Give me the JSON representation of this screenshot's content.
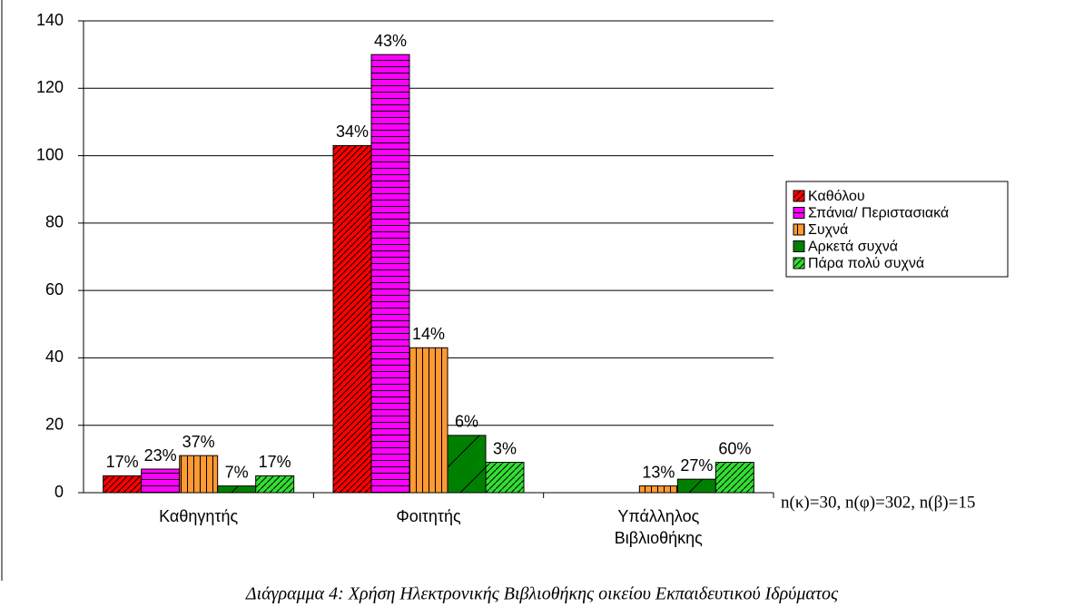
{
  "chart_data": {
    "type": "bar",
    "categories": [
      "Καθηγητής",
      "Φοιτητής",
      "Υπάλληλος Βιβλιοθήκης"
    ],
    "series": [
      {
        "name": "Καθόλου",
        "color": "#ff0000",
        "pattern": "diagonal",
        "values": [
          5,
          103,
          0
        ],
        "value_labels": [
          "17%",
          "34%",
          null
        ]
      },
      {
        "name": "Σπάνια/ Περιστασιακά",
        "color": "#ff00ff",
        "pattern": "horizontal",
        "values": [
          7,
          130,
          0
        ],
        "value_labels": [
          "23%",
          "43%",
          null
        ]
      },
      {
        "name": "Συχνά",
        "color": "#ff9933",
        "pattern": "vertical",
        "values": [
          11,
          43,
          2
        ],
        "value_labels": [
          "37%",
          "14%",
          "13%"
        ]
      },
      {
        "name": "Αρκετά συχνά",
        "color": "#008000",
        "pattern": "single",
        "values": [
          2,
          17,
          4
        ],
        "value_labels": [
          "7%",
          "6%",
          "27%"
        ]
      },
      {
        "name": "Πάρα πολύ συχνά",
        "color": "#33dd33",
        "pattern": "diagonal",
        "values": [
          5,
          9,
          9
        ],
        "value_labels": [
          "17%",
          "3%",
          "60%"
        ]
      }
    ],
    "ylim": [
      0,
      140
    ],
    "yticks": [
      0,
      20,
      40,
      60,
      80,
      100,
      120,
      140
    ],
    "grid": true,
    "legend": "right",
    "annotation": "n(κ)=30, n(φ)=302, n(β)=15",
    "caption": "Διάγραμμα 4: Χρήση Ηλεκτρονικής Βιβλιοθήκης οικείου Εκπαιδευτικού Ιδρύματος"
  }
}
